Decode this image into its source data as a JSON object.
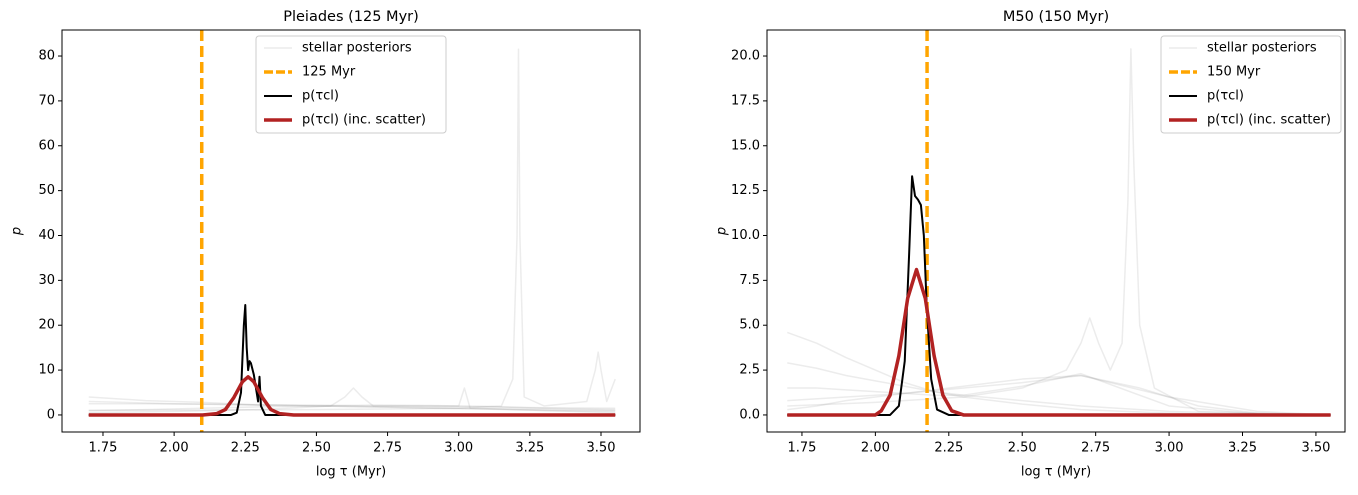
{
  "chart_data": [
    {
      "type": "line",
      "title": "Pleiades (125 Myr)",
      "x_label": "log τ (Myr)",
      "y_label": "p",
      "xlim": [
        1.606,
        3.637
      ],
      "ylim": [
        -3.8,
        85.8
      ],
      "xticks": [
        1.75,
        {
          "value": 2,
          "label": "2.00"
        },
        2.25,
        {
          "value": 2.5,
          "label": "2.50"
        },
        2.75,
        {
          "value": 3,
          "label": "3.00"
        },
        3.25,
        {
          "value": 3.5,
          "label": "3.50"
        }
      ],
      "yticks": [
        0,
        10,
        20,
        30,
        40,
        50,
        60,
        70,
        80
      ],
      "legend": "upper center",
      "posteriors": {
        "name": "stellar posteriors",
        "color": "#808080",
        "lines": [
          {
            "x": [
              1.7,
              1.9,
              2.1,
              2.3,
              2.5,
              2.7,
              2.9,
              3.1,
              3.3,
              3.55
            ],
            "values": [
              4,
              3.2,
              2.8,
              2.2,
              2,
              1.8,
              1.5,
              1.3,
              1,
              0.8
            ]
          },
          {
            "x": [
              1.7,
              1.9,
              2.1,
              2.3,
              2.5,
              2.7,
              2.9,
              3.1,
              3.3,
              3.55
            ],
            "values": [
              2.5,
              2.5,
              2.4,
              2.3,
              2.2,
              2,
              1.9,
              1.8,
              1.6,
              1.5
            ]
          },
          {
            "x": [
              1.7,
              1.9,
              2.1,
              2.3,
              2.5,
              2.7,
              2.9,
              3.1,
              3.3,
              3.55
            ],
            "values": [
              1,
              1.2,
              1.5,
              1.8,
              2,
              2.2,
              2.1,
              1.9,
              1.5,
              1.2
            ]
          },
          {
            "x": [
              1.7,
              2.0,
              2.3,
              2.55,
              2.6,
              2.63,
              2.66,
              2.7,
              3.0,
              3.02,
              3.04,
              3.3,
              3.55
            ],
            "values": [
              0.5,
              0.8,
              1.2,
              2,
              4,
              6,
              4,
              2,
              2,
              6,
              1.5,
              1,
              0.5
            ]
          },
          {
            "x": [
              1.7,
              2.5,
              3.0,
              3.15,
              3.19,
              3.205,
              3.21,
              3.215,
              3.23,
              3.3,
              3.45,
              3.48,
              3.49,
              3.5,
              3.52,
              3.55
            ],
            "values": [
              1,
              1.2,
              1.5,
              2,
              8,
              40,
              81.5,
              40,
              4,
              2,
              3,
              10,
              14,
              10,
              3,
              8
            ]
          },
          {
            "x": [
              1.7,
              2.0,
              2.5,
              3.0,
              3.55
            ],
            "values": [
              3,
              2.5,
              2,
              1.5,
              1
            ]
          }
        ]
      },
      "vline": {
        "name": "125 Myr",
        "x": 2.097,
        "color": "#ffa500"
      },
      "series": [
        {
          "name": "p(τcl)",
          "color": "#000000",
          "x": [
            1.7,
            2.2,
            2.22,
            2.235,
            2.245,
            2.25,
            2.255,
            2.26,
            2.265,
            2.27,
            2.28,
            2.29,
            2.295,
            2.3,
            2.305,
            2.32,
            3.55
          ],
          "values": [
            0,
            0,
            0.5,
            5,
            20,
            24.5,
            15,
            10,
            12,
            11.5,
            9,
            5,
            3,
            8.5,
            2,
            0,
            0
          ]
        },
        {
          "name": "p(τcl) (inc. scatter)",
          "color": "#b22222",
          "x": [
            1.7,
            2.1,
            2.15,
            2.18,
            2.21,
            2.24,
            2.26,
            2.28,
            2.31,
            2.34,
            2.37,
            2.42,
            3.55
          ],
          "values": [
            0,
            0,
            0.3,
            1.2,
            3.9,
            7.4,
            8.5,
            7.4,
            3.9,
            1.2,
            0.3,
            0,
            0
          ]
        }
      ]
    },
    {
      "type": "line",
      "title": "M50 (150 Myr)",
      "x_label": "log τ (Myr)",
      "y_label": "p",
      "xlim": [
        1.631,
        3.599
      ],
      "ylim": [
        -0.95,
        21.45
      ],
      "xticks": [
        1.75,
        {
          "value": 2,
          "label": "2.00"
        },
        2.25,
        {
          "value": 2.5,
          "label": "2.50"
        },
        2.75,
        {
          "value": 3,
          "label": "3.00"
        },
        3.25,
        {
          "value": 3.5,
          "label": "3.50"
        }
      ],
      "yticks": [
        {
          "value": 0,
          "label": "0.0"
        },
        2.5,
        {
          "value": 5,
          "label": "5.0"
        },
        7.5,
        {
          "value": 10,
          "label": "10.0"
        },
        12.5,
        {
          "value": 15,
          "label": "15.0"
        },
        17.5,
        {
          "value": 20,
          "label": "20.0"
        }
      ],
      "legend": "upper right",
      "posteriors": {
        "name": "stellar posteriors",
        "color": "#808080",
        "lines": [
          {
            "x": [
              1.7,
              1.8,
              1.9,
              2.0,
              2.1,
              2.2,
              2.3,
              2.5,
              2.7,
              3.0,
              3.3,
              3.55
            ],
            "values": [
              4.6,
              4.0,
              3.2,
              2.5,
              1.8,
              1.3,
              1.0,
              0.6,
              0.3,
              0.1,
              0,
              0
            ]
          },
          {
            "x": [
              1.7,
              1.8,
              1.9,
              2.0,
              2.1,
              2.2,
              2.3,
              2.5,
              2.7,
              3.0,
              3.3,
              3.55
            ],
            "values": [
              2.9,
              2.6,
              2.2,
              1.9,
              1.6,
              1.3,
              1.1,
              0.8,
              0.5,
              0.2,
              0.05,
              0
            ]
          },
          {
            "x": [
              1.7,
              1.8,
              1.9,
              2.0,
              2.1,
              2.2,
              2.3,
              2.5,
              2.7,
              3.0,
              3.3,
              3.55
            ],
            "values": [
              0.3,
              0.5,
              0.8,
              1.0,
              1.2,
              1.4,
              1.6,
              2.0,
              2.2,
              1.0,
              0.2,
              0
            ]
          },
          {
            "x": [
              1.7,
              1.8,
              1.9,
              2.0,
              2.1,
              2.2,
              2.3,
              2.5,
              2.7,
              3.0,
              3.3,
              3.55
            ],
            "values": [
              1.5,
              1.5,
              1.4,
              1.3,
              1.2,
              1.1,
              1.1,
              1.6,
              2.3,
              0.5,
              0.05,
              0
            ]
          },
          {
            "x": [
              1.7,
              2.0,
              2.3,
              2.5,
              2.65,
              2.7,
              2.73,
              2.76,
              2.8,
              2.84,
              2.86,
              2.87,
              2.88,
              2.9,
              2.95,
              3.1,
              3.55
            ],
            "values": [
              0.5,
              0.7,
              1,
              1.5,
              2.5,
              4,
              5.4,
              4,
              2.5,
              4,
              12,
              20.4,
              14,
              5,
              1.5,
              0.2,
              0
            ]
          },
          {
            "x": [
              1.7,
              1.9,
              2.1,
              2.3,
              2.5,
              2.7,
              2.9,
              3.1,
              3.3,
              3.55
            ],
            "values": [
              0.8,
              1,
              1.2,
              1.5,
              1.8,
              2.2,
              1.5,
              0.5,
              0.1,
              0
            ]
          }
        ]
      },
      "vline": {
        "name": "150 Myr",
        "x": 2.176,
        "color": "#ffa500"
      },
      "series": [
        {
          "name": "p(τcl)",
          "color": "#000000",
          "x": [
            1.7,
            2.05,
            2.08,
            2.1,
            2.115,
            2.125,
            2.135,
            2.145,
            2.155,
            2.165,
            2.175,
            2.19,
            2.21,
            2.25,
            3.55
          ],
          "values": [
            0,
            0,
            0.5,
            3,
            9,
            13.3,
            12.2,
            12,
            11.7,
            10,
            6,
            2,
            0.3,
            0,
            0
          ]
        },
        {
          "name": "p(τcl) (inc. scatter)",
          "color": "#b22222",
          "x": [
            1.7,
            2.0,
            2.02,
            2.05,
            2.08,
            2.11,
            2.14,
            2.17,
            2.2,
            2.23,
            2.26,
            2.3,
            3.55
          ],
          "values": [
            0,
            0,
            0.23,
            1.1,
            3.3,
            6.5,
            8.1,
            6.5,
            3.3,
            1.1,
            0.23,
            0,
            0
          ]
        }
      ]
    }
  ]
}
